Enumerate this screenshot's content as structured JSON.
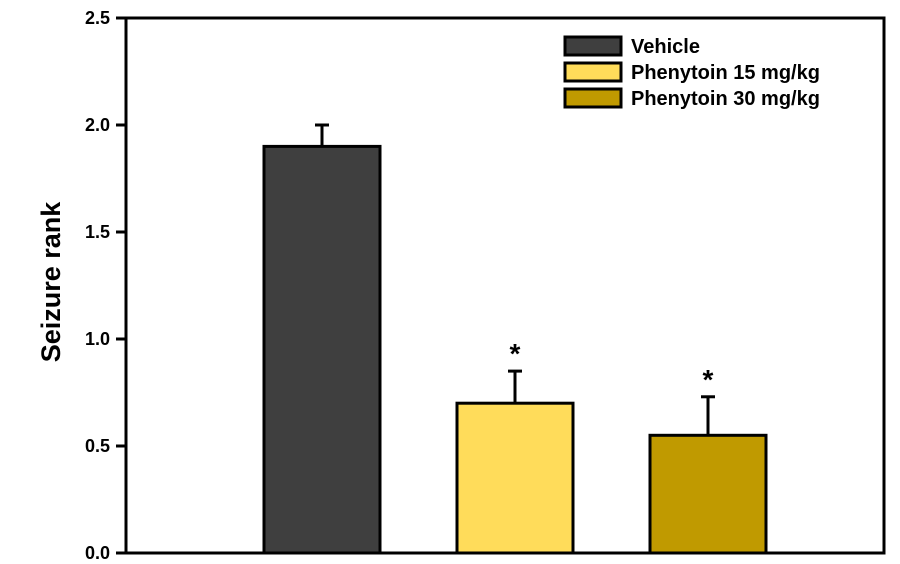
{
  "chart_data": {
    "type": "bar",
    "title": "",
    "xlabel": "",
    "ylabel": "Seizure rank",
    "ylim": [
      0,
      2.5
    ],
    "yticks": [
      "0.0",
      "0.5",
      "1.0",
      "1.5",
      "2.0",
      "2.5"
    ],
    "grid": false,
    "legend_position": "top-right",
    "series": [
      {
        "name": "Vehicle",
        "value": 1.9,
        "error": 0.1,
        "color": "#3f3f3f",
        "annotation": ""
      },
      {
        "name": "Phenytoin 15 mg/kg",
        "value": 0.7,
        "error": 0.15,
        "color": "#ffdc5a",
        "annotation": "*"
      },
      {
        "name": "Phenytoin 30 mg/kg",
        "value": 0.55,
        "error": 0.18,
        "color": "#c09a00",
        "annotation": "*"
      }
    ]
  }
}
